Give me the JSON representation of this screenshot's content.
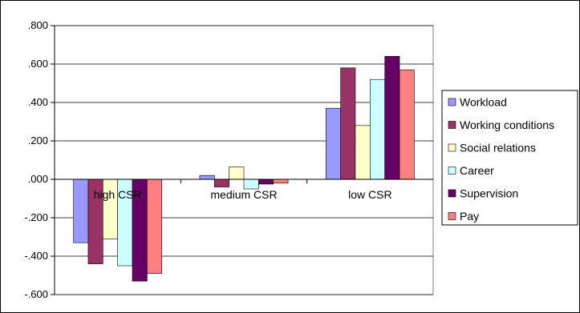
{
  "chart_data": {
    "type": "bar",
    "categories": [
      "high CSR",
      "medium CSR",
      "low CSR"
    ],
    "series": [
      {
        "name": "Workload",
        "color": "#9999ff",
        "values": [
          -0.33,
          0.02,
          0.37
        ]
      },
      {
        "name": "Working conditions",
        "color": "#993366",
        "values": [
          -0.44,
          -0.04,
          0.58
        ]
      },
      {
        "name": "Social relations",
        "color": "#ffffcc",
        "values": [
          -0.31,
          0.065,
          0.28
        ]
      },
      {
        "name": "Career",
        "color": "#ccffff",
        "values": [
          -0.45,
          -0.05,
          0.52
        ]
      },
      {
        "name": "Supervision",
        "color": "#660066",
        "values": [
          -0.53,
          -0.025,
          0.64
        ]
      },
      {
        "name": "Pay",
        "color": "#ff8080",
        "values": [
          -0.49,
          -0.02,
          0.57
        ]
      }
    ],
    "yticks": [
      ".800",
      ".600",
      ".400",
      ".200",
      ".000",
      "-.200",
      "-.400",
      "-.600"
    ],
    "ylim": [
      -0.6,
      0.8
    ],
    "grid": true,
    "legend_position": "right"
  }
}
